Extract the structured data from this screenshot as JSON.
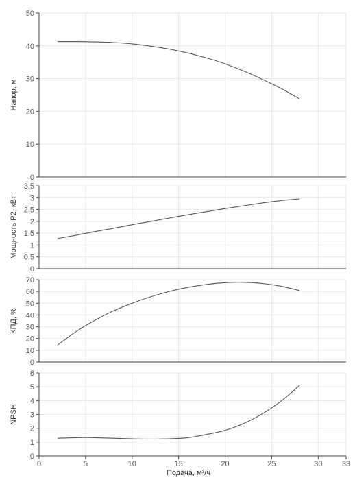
{
  "chart_data": [
    {
      "type": "line",
      "ylabel": "Напор, м",
      "ylim": [
        0,
        50
      ],
      "yticks": [
        "0",
        "10",
        "20",
        "30",
        "40",
        "50"
      ],
      "xlim": [
        0,
        33
      ],
      "grid": true,
      "series": [
        {
          "x": [
            2,
            4,
            6,
            8,
            10,
            12,
            14,
            16,
            18,
            20,
            22,
            24,
            26,
            28
          ],
          "y": [
            41.3,
            41.3,
            41.2,
            41.0,
            40.6,
            39.9,
            39.0,
            37.8,
            36.3,
            34.5,
            32.3,
            29.8,
            27.0,
            23.8
          ]
        }
      ]
    },
    {
      "type": "line",
      "ylabel": "Мощность P2, кВт",
      "ylim": [
        0,
        3.5
      ],
      "yticks": [
        "0",
        "0.5",
        "1",
        "1.5",
        "2",
        "2.5",
        "3",
        "3.5"
      ],
      "xlim": [
        0,
        33
      ],
      "grid": true,
      "series": [
        {
          "x": [
            2,
            4,
            6,
            8,
            10,
            12,
            14,
            16,
            18,
            20,
            22,
            24,
            26,
            28
          ],
          "y": [
            1.28,
            1.42,
            1.57,
            1.71,
            1.86,
            2.0,
            2.14,
            2.28,
            2.41,
            2.54,
            2.66,
            2.78,
            2.88,
            2.95
          ]
        }
      ]
    },
    {
      "type": "line",
      "ylabel": "КПД, %",
      "ylim": [
        0,
        70
      ],
      "yticks": [
        "0",
        "10",
        "20",
        "30",
        "40",
        "50",
        "60",
        "70"
      ],
      "xlim": [
        0,
        33
      ],
      "grid": true,
      "series": [
        {
          "x": [
            2,
            4,
            6,
            8,
            10,
            12,
            14,
            16,
            18,
            20,
            22,
            24,
            26,
            28
          ],
          "y": [
            14.5,
            26.0,
            35.5,
            43.5,
            50.0,
            55.5,
            60.0,
            63.5,
            66.0,
            67.5,
            67.8,
            66.8,
            64.5,
            60.8
          ]
        }
      ]
    },
    {
      "type": "line",
      "xlabel": "Подача, м³/ч",
      "ylabel": "NPSH",
      "ylim": [
        0,
        6
      ],
      "yticks": [
        "0",
        "1",
        "2",
        "3",
        "4",
        "5",
        "6"
      ],
      "xlim": [
        0,
        33
      ],
      "xticks": [
        0,
        5,
        10,
        15,
        20,
        25,
        30,
        33
      ],
      "grid": true,
      "series": [
        {
          "x": [
            2,
            4,
            6,
            8,
            10,
            12,
            14,
            16,
            18,
            20,
            22,
            24,
            26,
            28
          ],
          "y": [
            1.28,
            1.32,
            1.32,
            1.28,
            1.24,
            1.22,
            1.24,
            1.32,
            1.55,
            1.85,
            2.35,
            3.05,
            3.95,
            5.1
          ]
        }
      ]
    }
  ]
}
